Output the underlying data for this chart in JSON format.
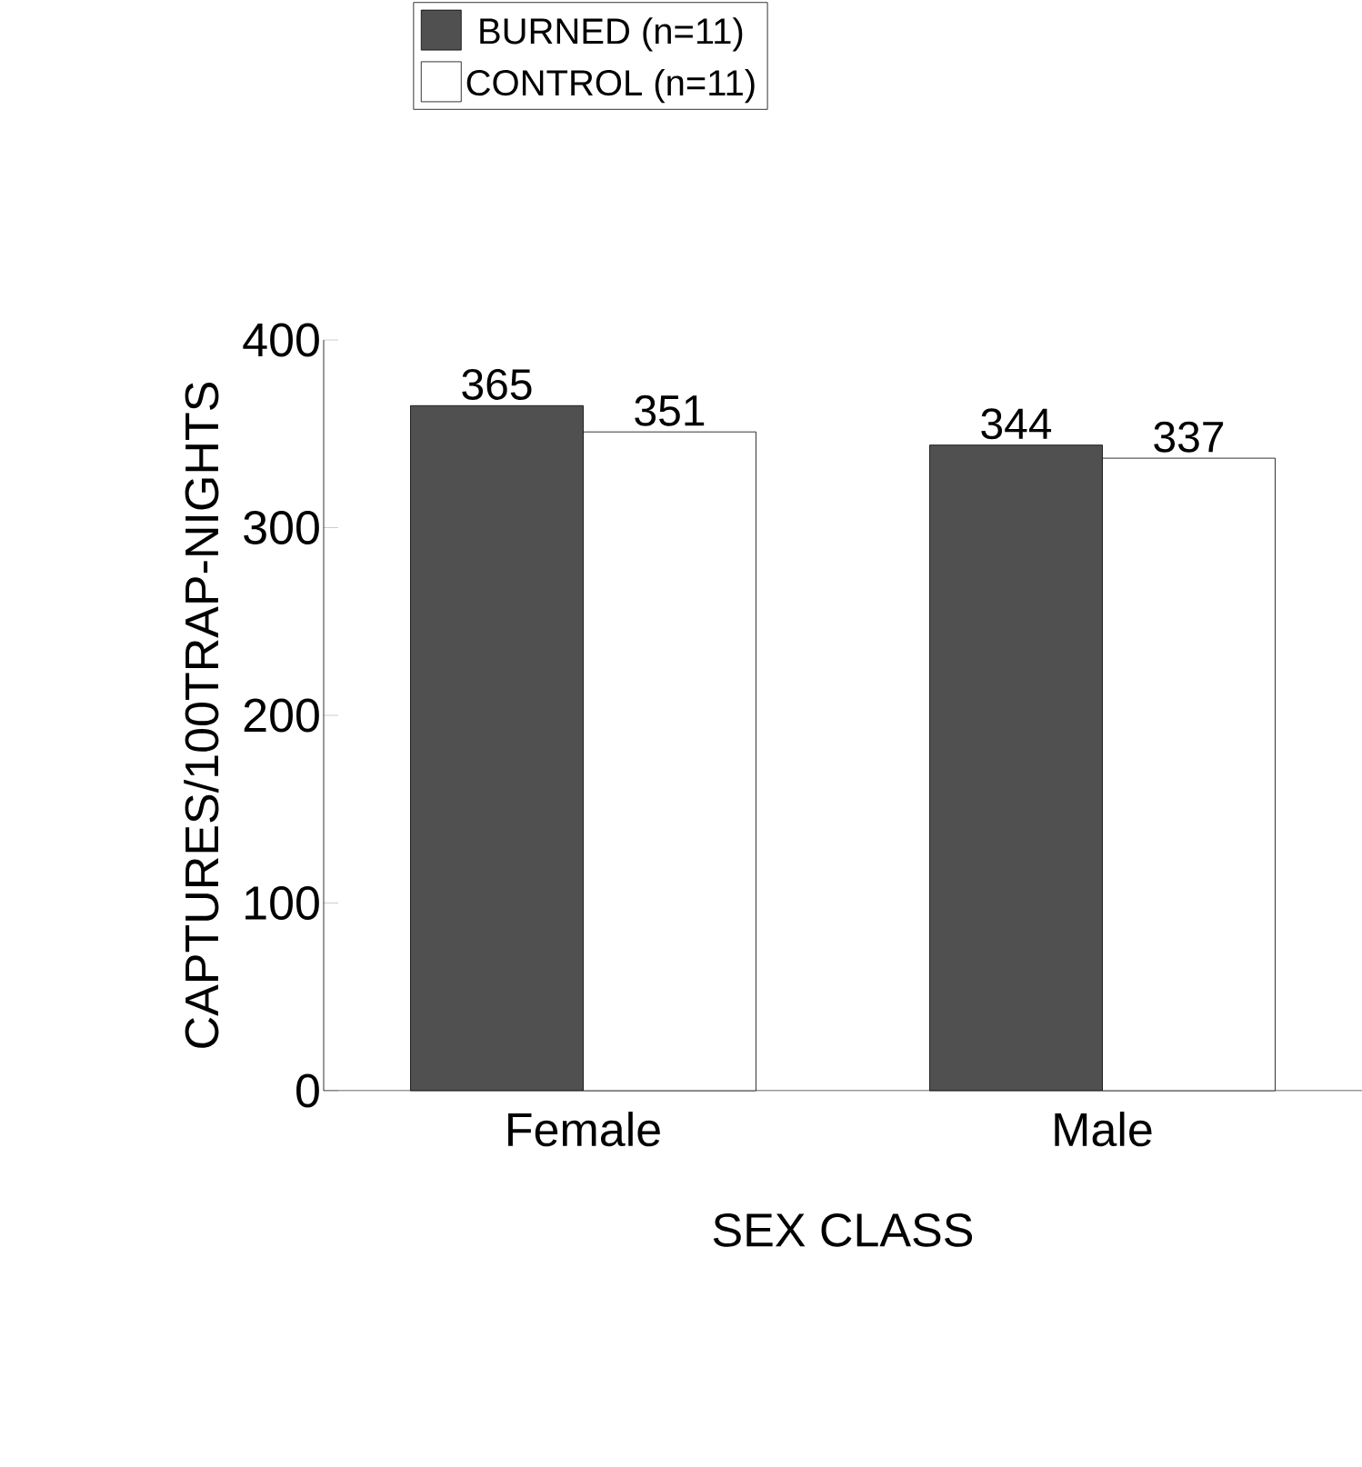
{
  "chart_data": {
    "type": "bar",
    "xlabel": "SEX CLASS",
    "ylabel": "CAPTURES/100TRAP-NIGHTS",
    "categories": [
      "Female",
      "Male"
    ],
    "series": [
      {
        "name": "BURNED (n=11)",
        "color": "#505050",
        "values": [
          365,
          344
        ]
      },
      {
        "name": "CONTROL (n=11)",
        "color": "#ffffff",
        "values": [
          351,
          337
        ]
      }
    ],
    "ylim": [
      0,
      400
    ],
    "yticks": [
      0,
      100,
      200,
      300,
      400
    ],
    "data_labels": true,
    "legend": "top"
  }
}
